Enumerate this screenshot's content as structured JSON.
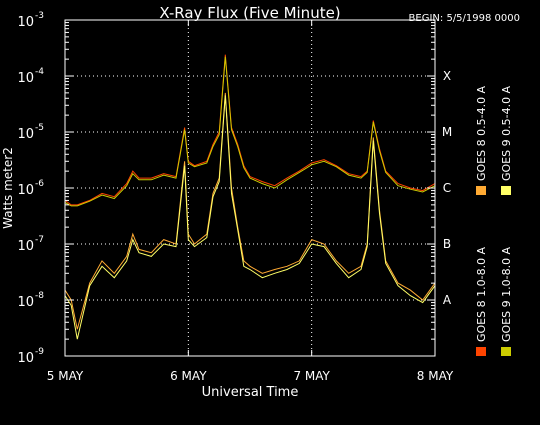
{
  "chart_data": {
    "type": "line",
    "title": "X-Ray Flux (Five Minute)",
    "begin_label": "BEGIN: 5/5/1998 0000",
    "xlabel": "Universal Time",
    "ylabel": "Watts meter2",
    "log_scale_y": true,
    "ylim": [
      1e-09,
      0.001
    ],
    "xlim": [
      0,
      3
    ],
    "x_unit": "days since 5 MAY 1998 00:00 UT",
    "x_ticks": [
      {
        "value": 0,
        "label": "5 MAY"
      },
      {
        "value": 1,
        "label": "6 MAY"
      },
      {
        "value": 2,
        "label": "7 MAY"
      },
      {
        "value": 3,
        "label": "8 MAY"
      }
    ],
    "y_ticks": [
      {
        "exp": -9,
        "label": "10",
        "sup": "-9"
      },
      {
        "exp": -8,
        "label": "10",
        "sup": "-8"
      },
      {
        "exp": -7,
        "label": "10",
        "sup": "-7"
      },
      {
        "exp": -6,
        "label": "10",
        "sup": "-6"
      },
      {
        "exp": -5,
        "label": "10",
        "sup": "-5"
      },
      {
        "exp": -4,
        "label": "10",
        "sup": "-4"
      },
      {
        "exp": -3,
        "label": "10",
        "sup": "-3"
      }
    ],
    "flare_classes": [
      {
        "label": "X",
        "exp": -4
      },
      {
        "label": "M",
        "exp": -5
      },
      {
        "label": "C",
        "exp": -6
      },
      {
        "label": "B",
        "exp": -7
      },
      {
        "label": "A",
        "exp": -8
      }
    ],
    "grid": true,
    "legend_position": "right, vertical",
    "series": [
      {
        "name": "GOES 8 1.0-8.0 A",
        "color": "#ff4400",
        "x": [
          0.0,
          0.05,
          0.1,
          0.2,
          0.3,
          0.4,
          0.5,
          0.55,
          0.6,
          0.7,
          0.8,
          0.9,
          0.97,
          1.0,
          1.05,
          1.15,
          1.2,
          1.25,
          1.3,
          1.35,
          1.4,
          1.45,
          1.5,
          1.6,
          1.7,
          1.8,
          1.9,
          2.0,
          2.1,
          2.2,
          2.3,
          2.4,
          2.45,
          2.5,
          2.55,
          2.6,
          2.7,
          2.8,
          2.9,
          3.0
        ],
        "y": [
          6e-07,
          5e-07,
          5e-07,
          6e-07,
          8e-07,
          7e-07,
          1.2e-06,
          2e-06,
          1.5e-06,
          1.5e-06,
          1.8e-06,
          1.6e-06,
          1.2e-05,
          3e-06,
          2.5e-06,
          3e-06,
          6e-06,
          1e-05,
          0.00024,
          1.2e-05,
          6e-06,
          2.5e-06,
          1.6e-06,
          1.3e-06,
          1.1e-06,
          1.5e-06,
          2e-06,
          2.8e-06,
          3.2e-06,
          2.5e-06,
          1.8e-06,
          1.6e-06,
          2e-06,
          1.6e-05,
          5e-06,
          2e-06,
          1.2e-06,
          1e-06,
          9e-07,
          1.2e-06
        ]
      },
      {
        "name": "GOES 8 0.5-4.0 A",
        "color": "#ffaa33",
        "x": [
          0.0,
          0.05,
          0.1,
          0.2,
          0.3,
          0.4,
          0.5,
          0.55,
          0.6,
          0.7,
          0.8,
          0.9,
          0.97,
          1.0,
          1.05,
          1.15,
          1.2,
          1.25,
          1.3,
          1.35,
          1.4,
          1.45,
          1.5,
          1.6,
          1.7,
          1.8,
          1.9,
          2.0,
          2.1,
          2.2,
          2.3,
          2.4,
          2.45,
          2.5,
          2.55,
          2.6,
          2.7,
          2.8,
          2.9,
          3.0
        ],
        "y": [
          1.5e-08,
          1e-08,
          3e-09,
          2e-08,
          5e-08,
          3e-08,
          6e-08,
          1.5e-07,
          8e-08,
          7e-08,
          1.2e-07,
          1e-07,
          3e-06,
          1.5e-07,
          1e-07,
          1.5e-07,
          8e-07,
          1.5e-06,
          5e-05,
          1e-06,
          2e-07,
          5e-08,
          4e-08,
          3e-08,
          3.5e-08,
          4e-08,
          5e-08,
          1.2e-07,
          1e-07,
          5e-08,
          3e-08,
          4e-08,
          1e-07,
          8e-06,
          4e-07,
          5e-08,
          2e-08,
          1.5e-08,
          1e-08,
          2e-08
        ]
      },
      {
        "name": "GOES 9 0.5-4.0 A",
        "color": "#ffff66",
        "x": [
          0.0,
          0.05,
          0.1,
          0.2,
          0.3,
          0.4,
          0.5,
          0.55,
          0.6,
          0.7,
          0.8,
          0.9,
          0.97,
          1.0,
          1.05,
          1.15,
          1.2,
          1.25,
          1.3,
          1.35,
          1.4,
          1.45,
          1.5,
          1.6,
          1.7,
          1.8,
          1.9,
          2.0,
          2.1,
          2.2,
          2.3,
          2.4,
          2.45,
          2.5,
          2.55,
          2.6,
          2.7,
          2.8,
          2.9,
          3.0
        ],
        "y": [
          1.2e-08,
          8e-09,
          2e-09,
          1.8e-08,
          4e-08,
          2.5e-08,
          5e-08,
          1.2e-07,
          7e-08,
          6e-08,
          1e-07,
          9e-08,
          2.5e-06,
          1.2e-07,
          9e-08,
          1.3e-07,
          7e-07,
          1.3e-06,
          4.5e-05,
          8e-07,
          1.8e-07,
          4e-08,
          3.5e-08,
          2.5e-08,
          3e-08,
          3.5e-08,
          4.5e-08,
          1e-07,
          9e-08,
          4.5e-08,
          2.5e-08,
          3.5e-08,
          9e-08,
          7e-06,
          3.5e-07,
          4.5e-08,
          1.8e-08,
          1.2e-08,
          9e-09,
          1.8e-08
        ]
      },
      {
        "name": "GOES 9 1.0-8.0 A",
        "color": "#cccc00",
        "x": [
          0.0,
          0.05,
          0.1,
          0.2,
          0.3,
          0.4,
          0.5,
          0.55,
          0.6,
          0.7,
          0.8,
          0.9,
          0.97,
          1.0,
          1.05,
          1.15,
          1.2,
          1.25,
          1.3,
          1.35,
          1.4,
          1.45,
          1.5,
          1.6,
          1.7,
          1.8,
          1.9,
          2.0,
          2.1,
          2.2,
          2.3,
          2.4,
          2.45,
          2.5,
          2.55,
          2.6,
          2.7,
          2.8,
          2.9,
          3.0
        ],
        "y": [
          5.5e-07,
          4.8e-07,
          4.8e-07,
          5.8e-07,
          7.5e-07,
          6.5e-07,
          1.1e-06,
          1.8e-06,
          1.4e-06,
          1.4e-06,
          1.7e-06,
          1.5e-06,
          1.1e-05,
          2.8e-06,
          2.4e-06,
          2.8e-06,
          5.5e-06,
          9e-06,
          0.00022,
          1.1e-05,
          5.5e-06,
          2.3e-06,
          1.5e-06,
          1.2e-06,
          1e-06,
          1.4e-06,
          1.9e-06,
          2.6e-06,
          3e-06,
          2.4e-06,
          1.7e-06,
          1.5e-06,
          1.9e-06,
          1.5e-05,
          4.6e-06,
          1.9e-06,
          1.1e-06,
          9.5e-07,
          8.5e-07,
          1.1e-06
        ]
      }
    ]
  }
}
